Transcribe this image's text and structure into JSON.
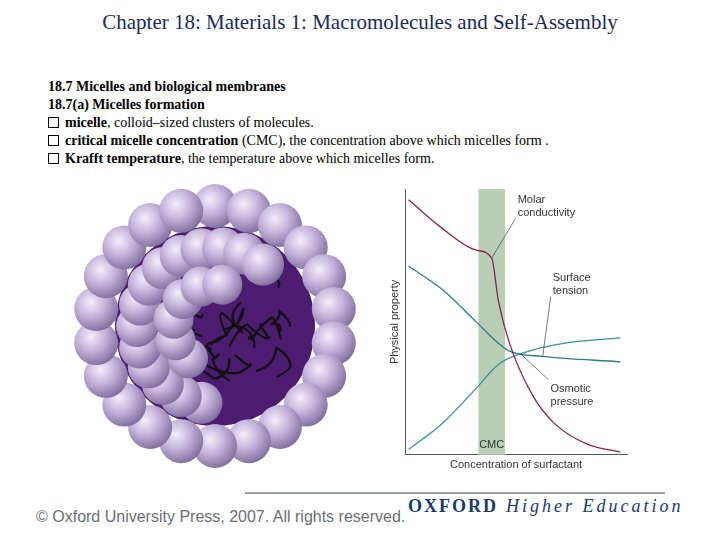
{
  "header": {
    "title": "Chapter 18: Materials 1: Macromolecules and Self-Assembly"
  },
  "section": {
    "heading": "18.7 Micelles and biological membranes",
    "subheading": "18.7(a) Micelles formation"
  },
  "bullets": [
    {
      "term": "micelle",
      "text": ", colloid–sized clusters of molecules."
    },
    {
      "term": "critical micelle concentration",
      "text": " (CMC), the concentration above which micelles form ."
    },
    {
      "term": "Krafft temperature",
      "text": ", the temperature above which micelles form."
    }
  ],
  "chart_data": {
    "type": "line",
    "x_label": "Concentration of surfactant",
    "y_label": "Physical property",
    "xlim": [
      0,
      10
    ],
    "ylim": [
      0,
      10
    ],
    "tick_labels": false,
    "grid": false,
    "cmc_band": {
      "label": "CMC",
      "range": [
        3.3,
        4.5
      ]
    },
    "series": [
      {
        "name": "Molar conductivity",
        "color": "#8b2252",
        "x": [
          0.15,
          1.7,
          3.2,
          3.9,
          4.2,
          4.7,
          5.7,
          6.7,
          8.2,
          9.7
        ],
        "values": [
          9.6,
          8.5,
          7.7,
          7.4,
          5.8,
          4.2,
          2.3,
          1.2,
          0.4,
          0.1
        ]
      },
      {
        "name": "Surface tension",
        "color": "#2e7d8c",
        "x": [
          0.15,
          1.7,
          3.2,
          4.2,
          4.7,
          6.2,
          9.7
        ],
        "values": [
          7.1,
          6.2,
          5.0,
          4.2,
          3.9,
          3.7,
          3.5
        ]
      },
      {
        "name": "Osmotic pressure",
        "color": "#3a8ea5",
        "x": [
          0.15,
          1.7,
          3.2,
          4.2,
          5.2,
          7.2,
          9.7
        ],
        "values": [
          0.2,
          1.2,
          2.5,
          3.4,
          3.8,
          4.2,
          4.4
        ]
      }
    ]
  },
  "footer": {
    "copyright": "© Oxford University Press, 2007. All rights reserved.",
    "brand": "OXFORD",
    "brand_sub": "Higher Education"
  }
}
